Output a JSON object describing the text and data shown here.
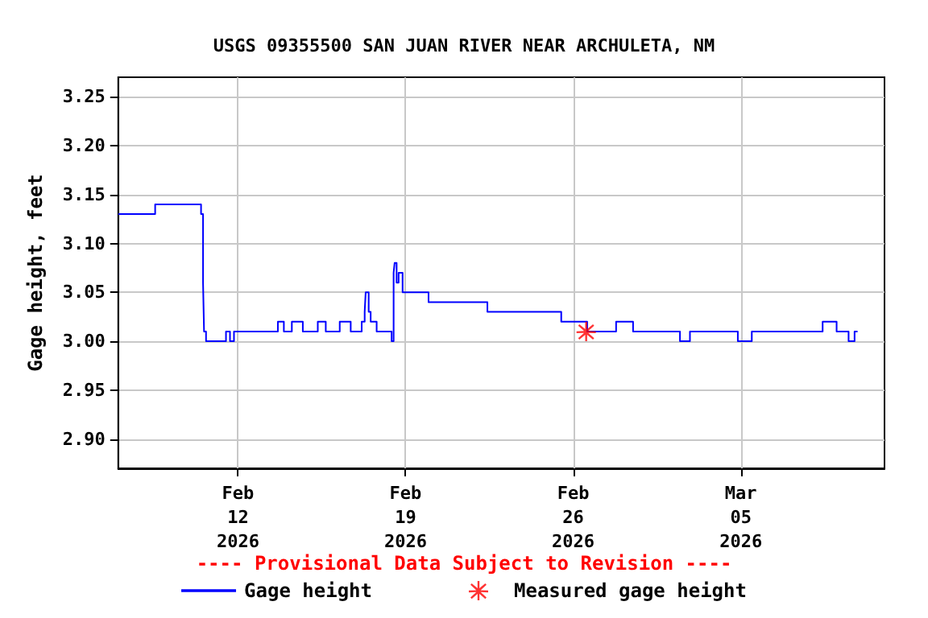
{
  "chart_data": {
    "type": "step",
    "title": "USGS 09355500 SAN JUAN RIVER NEAR ARCHULETA, NM",
    "ylabel": "Gage height, feet",
    "xlim": [
      "2026-02-07T00:00",
      "2026-03-11T00:00"
    ],
    "xticks": [
      {
        "value": "2026-02-12",
        "label": "Feb\n12\n2026"
      },
      {
        "value": "2026-02-19",
        "label": "Feb\n19\n2026"
      },
      {
        "value": "2026-02-26",
        "label": "Feb\n26\n2026"
      },
      {
        "value": "2026-03-05",
        "label": "Mar\n05\n2026"
      }
    ],
    "ylim": [
      2.87,
      3.27
    ],
    "yticks": [
      {
        "value": 2.9,
        "label": "2.90"
      },
      {
        "value": 2.95,
        "label": "2.95"
      },
      {
        "value": 3.0,
        "label": "3.00"
      },
      {
        "value": 3.05,
        "label": "3.05"
      },
      {
        "value": 3.1,
        "label": "3.10"
      },
      {
        "value": 3.15,
        "label": "3.15"
      },
      {
        "value": 3.2,
        "label": "3.20"
      },
      {
        "value": 3.25,
        "label": "3.25"
      }
    ],
    "grid": true,
    "legend": "bottom",
    "annotations": [
      "---- Provisional Data Subject to Revision ----"
    ],
    "series": [
      {
        "name": "Gage height",
        "color": "#0000ff",
        "x": [
          "2026-02-07T00:00",
          "2026-02-08T13:00",
          "2026-02-10T11:00",
          "2026-02-10T13:00",
          "2026-02-10T14:00",
          "2026-02-10T16:00",
          "2026-02-11T12:00",
          "2026-02-11T16:00",
          "2026-02-11T20:00",
          "2026-02-13T16:00",
          "2026-02-13T22:00",
          "2026-02-14T06:00",
          "2026-02-14T17:00",
          "2026-02-15T08:00",
          "2026-02-15T16:00",
          "2026-02-16T06:00",
          "2026-02-16T17:00",
          "2026-02-17T04:00",
          "2026-02-17T07:00",
          "2026-02-17T08:00",
          "2026-02-17T11:00",
          "2026-02-17T13:00",
          "2026-02-17T19:00",
          "2026-02-18T10:00",
          "2026-02-18T12:00",
          "2026-02-18T13:00",
          "2026-02-18T15:00",
          "2026-02-18T17:00",
          "2026-02-18T21:00",
          "2026-02-19T23:00",
          "2026-02-22T10:00",
          "2026-02-25T12:00",
          "2026-02-26T14:00",
          "2026-02-27T19:00",
          "2026-02-28T12:00",
          "2026-03-02T11:00",
          "2026-03-02T21:00",
          "2026-03-04T21:00",
          "2026-03-05T11:00",
          "2026-03-08T10:00",
          "2026-03-09T00:00",
          "2026-03-09T12:00",
          "2026-03-09T18:00",
          "2026-03-09T21:00"
        ],
        "values": [
          3.13,
          3.14,
          3.13,
          3.06,
          3.01,
          3.0,
          3.01,
          3.0,
          3.01,
          3.02,
          3.01,
          3.02,
          3.01,
          3.02,
          3.01,
          3.02,
          3.01,
          3.02,
          3.03,
          3.05,
          3.03,
          3.02,
          3.01,
          3.0,
          3.07,
          3.08,
          3.06,
          3.07,
          3.05,
          3.04,
          3.03,
          3.02,
          3.01,
          3.02,
          3.01,
          3.0,
          3.01,
          3.0,
          3.01,
          3.02,
          3.01,
          3.0,
          3.01,
          3.01
        ]
      },
      {
        "name": "Measured gage height",
        "type": "scatter",
        "marker": "star",
        "color": "#ff0000",
        "x": [
          "2026-02-26T13:00"
        ],
        "values": [
          3.01
        ]
      }
    ]
  }
}
